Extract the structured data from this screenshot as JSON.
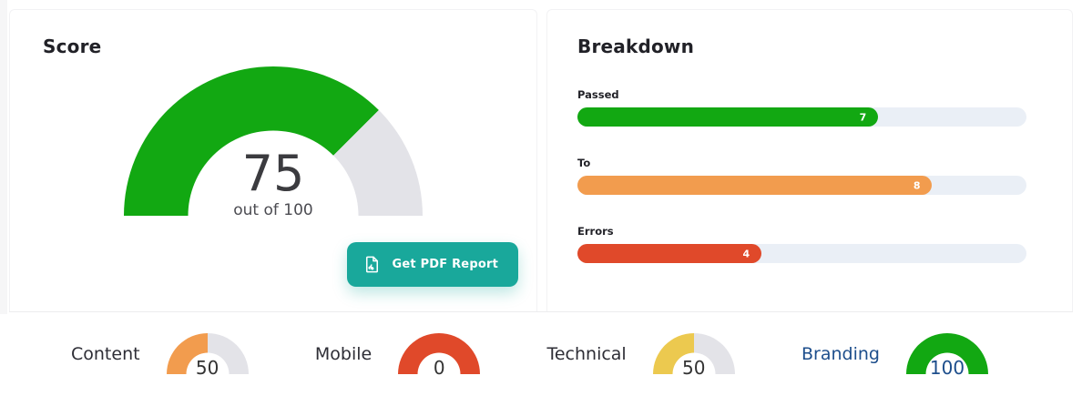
{
  "colors": {
    "green": "#12a812",
    "orange": "#f29c4e",
    "red": "#e0492a",
    "yellow": "#ecc94f",
    "teal": "#19a89b",
    "blue": "#1d4e8c",
    "gauge_track": "#e3e3e8",
    "bar_track": "#eaeff6"
  },
  "score_panel": {
    "title": "Score",
    "gauge": {
      "value": "75",
      "sub_label": "out of 100",
      "fill_pct": 75,
      "color": "#12a812"
    },
    "pdf_button": {
      "label": "Get PDF Report"
    }
  },
  "breakdown_panel": {
    "title": "Breakdown",
    "bars": [
      {
        "label": "Passed",
        "value": "7",
        "fill_pct": 67,
        "color": "#12a812"
      },
      {
        "label": "To",
        "value": "8",
        "fill_pct": 79,
        "color": "#f29c4e"
      },
      {
        "label": "Errors",
        "value": "4",
        "fill_pct": 41,
        "color": "#e0492a"
      }
    ]
  },
  "categories": [
    {
      "label": "Content",
      "value": "50",
      "fill_pct": 50,
      "color": "#f29c4e",
      "label_color": "#2d2d35",
      "value_color": "#333333"
    },
    {
      "label": "Mobile",
      "value": "0",
      "fill_pct": 100,
      "color": "#e0492a",
      "label_color": "#2d2d35",
      "value_color": "#333333"
    },
    {
      "label": "Technical",
      "value": "50",
      "fill_pct": 50,
      "color": "#ecc94f",
      "label_color": "#2d2d35",
      "value_color": "#333333"
    },
    {
      "label": "Branding",
      "value": "100",
      "fill_pct": 100,
      "color": "#12a812",
      "label_color": "#1d4e8c",
      "value_color": "#1d4e8c"
    }
  ],
  "chart_data": [
    {
      "type": "gauge",
      "title": "Score",
      "value": 75,
      "max": 100,
      "annotation": "out of 100",
      "fill_color": "#12a812",
      "track_color": "#e3e3e8"
    },
    {
      "type": "bar",
      "orientation": "horizontal",
      "title": "Breakdown",
      "categories": [
        "Passed",
        "To",
        "Errors"
      ],
      "values": [
        7,
        8,
        4
      ],
      "fill_fractions": [
        0.67,
        0.79,
        0.41
      ],
      "colors": [
        "#12a812",
        "#f29c4e",
        "#e0492a"
      ],
      "value_labels_inside_bar": true
    },
    {
      "type": "gauge",
      "title": "Category scores",
      "max": 100,
      "categories": [
        "Content",
        "Mobile",
        "Technical",
        "Branding"
      ],
      "values": [
        50,
        0,
        50,
        100
      ],
      "colors": [
        "#f29c4e",
        "#e0492a",
        "#ecc94f",
        "#12a812"
      ]
    }
  ]
}
